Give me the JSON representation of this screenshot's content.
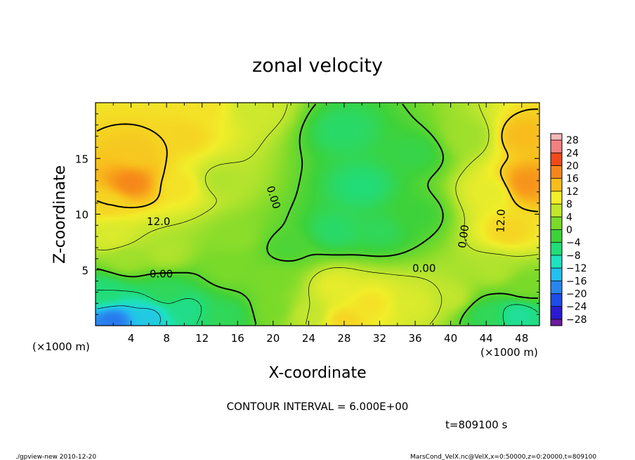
{
  "chart_data": {
    "type": "heatmap",
    "title": "zonal velocity",
    "xlabel": "X-coordinate",
    "ylabel": "Z-coordinate",
    "x_unit_label": "(×1000 m)",
    "y_unit_label": "(×1000 m)",
    "xlim": [
      0,
      50
    ],
    "ylim": [
      0,
      20
    ],
    "x_ticks": [
      4,
      8,
      12,
      16,
      20,
      24,
      28,
      32,
      36,
      40,
      44,
      48
    ],
    "y_ticks": [
      5,
      10,
      15
    ],
    "x_tick_labels": [
      "4",
      "8",
      "12",
      "16",
      "20",
      "24",
      "28",
      "32",
      "36",
      "40",
      "44",
      "48"
    ],
    "y_tick_labels": [
      "5",
      "10",
      "15"
    ],
    "colorbar": {
      "levels": [
        -30,
        -28,
        -24,
        -20,
        -16,
        -12,
        -8,
        -4,
        0,
        4,
        8,
        12,
        16,
        20,
        24,
        28,
        30
      ],
      "tick_values": [
        28,
        24,
        20,
        16,
        12,
        8,
        4,
        0,
        -4,
        -8,
        -12,
        -16,
        -20,
        -24,
        -28
      ],
      "tick_labels": [
        "28",
        "24",
        "20",
        "16",
        "12",
        "8",
        "4",
        "0",
        "−4",
        "−8",
        "−12",
        "−16",
        "−20",
        "−24",
        "−28"
      ],
      "colors": [
        "#6a1a9e",
        "#2a1ad2",
        "#1e4ce6",
        "#2a86ee",
        "#24c0f0",
        "#1ee2c0",
        "#22dc78",
        "#3ed23a",
        "#7ada2a",
        "#c2e62e",
        "#f2ee2a",
        "#f8bc1c",
        "#f6861a",
        "#ee4a1a",
        "#f28080",
        "#f8b8b8"
      ]
    },
    "contour_labels": [
      {
        "text": "12.0",
        "x": 7.1,
        "z": 9.3,
        "rotate": 0
      },
      {
        "text": "0.00",
        "x": 7.4,
        "z": 4.6,
        "rotate": 0
      },
      {
        "text": "0.00",
        "x": 20.0,
        "z": 11.5,
        "rotate": 72
      },
      {
        "text": "0.00",
        "x": 37.0,
        "z": 5.1,
        "rotate": 0
      },
      {
        "text": "0.00",
        "x": 41.5,
        "z": 8.0,
        "rotate": -82
      },
      {
        "text": "12.0",
        "x": 45.7,
        "z": 9.4,
        "rotate": -88
      }
    ],
    "hotspots": [
      {
        "x": 4.0,
        "z": 12.8,
        "value": 18
      },
      {
        "x": 4.5,
        "z": 15.5,
        "value": 13
      },
      {
        "x": 1.5,
        "z": 11.0,
        "value": 12
      },
      {
        "x": 10.0,
        "z": 17.0,
        "value": 12
      },
      {
        "x": 9.5,
        "z": 12.5,
        "value": 11
      },
      {
        "x": 12.0,
        "z": 19.5,
        "value": 11
      },
      {
        "x": 18.0,
        "z": 19.5,
        "value": 7
      },
      {
        "x": 14.0,
        "z": 13.0,
        "value": 5
      },
      {
        "x": 16.0,
        "z": 8.0,
        "value": 3
      },
      {
        "x": 21.5,
        "z": 7.0,
        "value": -1
      },
      {
        "x": 28.0,
        "z": 17.5,
        "value": -5
      },
      {
        "x": 30.0,
        "z": 12.5,
        "value": -6
      },
      {
        "x": 27.0,
        "z": 8.5,
        "value": -5
      },
      {
        "x": 32.0,
        "z": 8.5,
        "value": -4
      },
      {
        "x": 36.0,
        "z": 15.5,
        "value": -3
      },
      {
        "x": 36.0,
        "z": 10.0,
        "value": -2
      },
      {
        "x": 42.0,
        "z": 17.0,
        "value": 4
      },
      {
        "x": 44.5,
        "z": 12.0,
        "value": 9
      },
      {
        "x": 48.5,
        "z": 12.8,
        "value": 17
      },
      {
        "x": 48.0,
        "z": 17.0,
        "value": 14
      },
      {
        "x": 46.5,
        "z": 8.5,
        "value": 12
      },
      {
        "x": 45.0,
        "z": 5.0,
        "value": 5
      },
      {
        "x": 48.5,
        "z": 3.5,
        "value": 2
      },
      {
        "x": 47.5,
        "z": 1.0,
        "value": -8
      },
      {
        "x": 44.0,
        "z": 1.0,
        "value": -4
      },
      {
        "x": 40.0,
        "z": 2.5,
        "value": 6
      },
      {
        "x": 36.0,
        "z": 2.0,
        "value": 8
      },
      {
        "x": 31.0,
        "z": 2.0,
        "value": 11
      },
      {
        "x": 28.0,
        "z": 0.5,
        "value": 12
      },
      {
        "x": 27.0,
        "z": 3.5,
        "value": 9
      },
      {
        "x": 24.0,
        "z": 1.0,
        "value": 6
      },
      {
        "x": 20.0,
        "z": 1.5,
        "value": 2
      },
      {
        "x": 20.0,
        "z": 4.0,
        "value": 2
      },
      {
        "x": 15.0,
        "z": 5.0,
        "value": 2
      },
      {
        "x": 15.0,
        "z": 1.0,
        "value": -4
      },
      {
        "x": 10.0,
        "z": 1.5,
        "value": -7
      },
      {
        "x": 8.0,
        "z": 3.0,
        "value": -4
      },
      {
        "x": 6.0,
        "z": 0.8,
        "value": -13
      },
      {
        "x": 2.0,
        "z": 0.4,
        "value": -19
      },
      {
        "x": 1.0,
        "z": 3.0,
        "value": -6
      },
      {
        "x": 3.5,
        "z": 6.0,
        "value": 4
      },
      {
        "x": 8.0,
        "z": 6.5,
        "value": 5
      },
      {
        "x": 2.0,
        "z": 8.0,
        "value": 8
      }
    ]
  },
  "contour_interval_text": "CONTOUR INTERVAL = 6.000E+00",
  "time_text": "t=809100 s",
  "footer_left": "./gpview-new  2010-12-20",
  "footer_right": "MarsCond_VelX.nc@VelX,x=0:50000,z=0:20000,t=809100"
}
